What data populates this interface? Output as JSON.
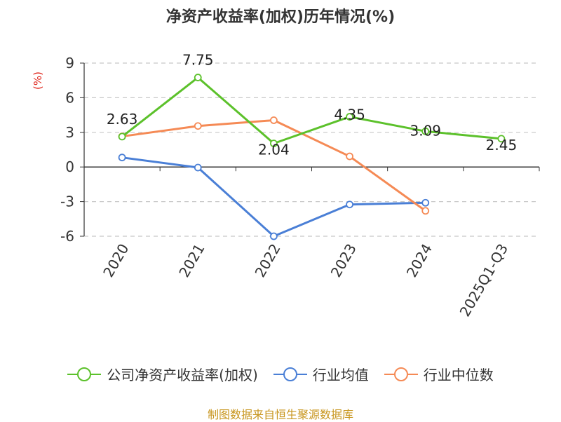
{
  "title": "净资产收益率(加权)历年情况(%)",
  "source": "制图数据来自恒生聚源数据库",
  "chart_data": {
    "type": "line",
    "title": "净资产收益率(加权)历年情况(%)",
    "ylabel": "(%)",
    "categories": [
      "2020",
      "2021",
      "2022",
      "2023",
      "2024",
      "2025Q1-Q3"
    ],
    "ylim": [
      -6,
      9
    ],
    "yticks": [
      -6,
      -3,
      0,
      3,
      6,
      9
    ],
    "grid": true,
    "legend_position": "bottom",
    "series": [
      {
        "name": "公司净资产收益率(加权)",
        "color": "#5cc12b",
        "values": [
          2.63,
          7.75,
          2.04,
          4.35,
          3.09,
          2.45
        ],
        "labels": [
          "2.63",
          "7.75",
          "2.04",
          "4.35",
          "3.09",
          "2.45"
        ]
      },
      {
        "name": "行业均值",
        "color": "#4a7fd6",
        "values": [
          0.82,
          -0.05,
          -6.0,
          -3.25,
          -3.1,
          null
        ]
      },
      {
        "name": "行业中位数",
        "color": "#f58a55",
        "values": [
          2.65,
          3.55,
          4.05,
          0.92,
          -3.8,
          null
        ]
      }
    ]
  }
}
